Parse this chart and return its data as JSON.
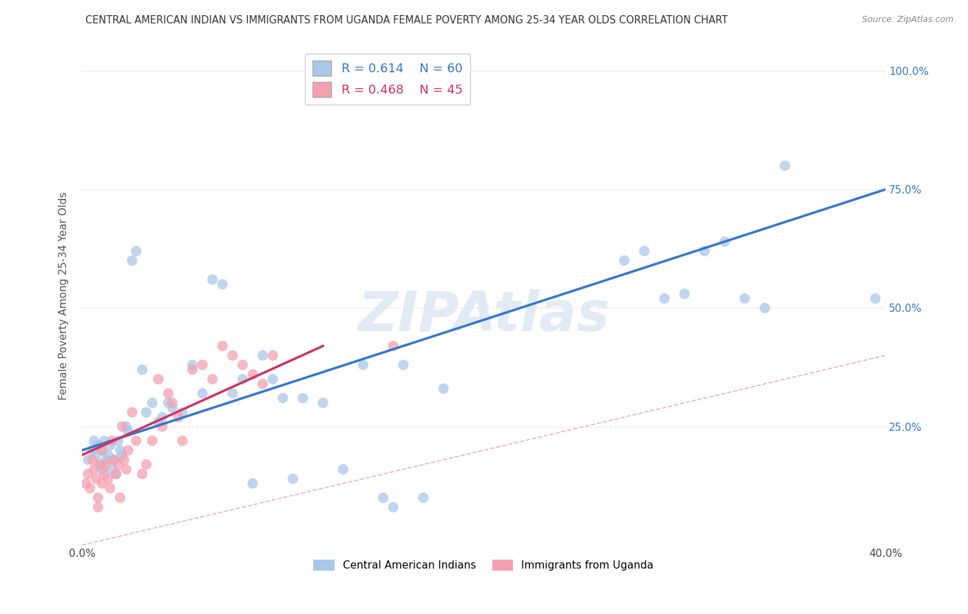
{
  "title": "CENTRAL AMERICAN INDIAN VS IMMIGRANTS FROM UGANDA FEMALE POVERTY AMONG 25-34 YEAR OLDS CORRELATION CHART",
  "source": "Source: ZipAtlas.com",
  "ylabel": "Female Poverty Among 25-34 Year Olds",
  "xlim": [
    0.0,
    0.4
  ],
  "ylim": [
    0.0,
    1.05
  ],
  "blue_R": 0.614,
  "blue_N": 60,
  "pink_R": 0.468,
  "pink_N": 45,
  "blue_color": "#a8c8e8",
  "pink_color": "#f4a0b0",
  "blue_line_color": "#3377cc",
  "pink_line_color": "#cc3366",
  "diagonal_line_color": "#e8a8b8",
  "watermark": "ZIPAtlas",
  "blue_scatter_x": [
    0.003,
    0.005,
    0.006,
    0.007,
    0.008,
    0.009,
    0.01,
    0.01,
    0.011,
    0.012,
    0.013,
    0.014,
    0.015,
    0.016,
    0.017,
    0.018,
    0.019,
    0.02,
    0.022,
    0.023,
    0.025,
    0.027,
    0.03,
    0.032,
    0.035,
    0.038,
    0.04,
    0.043,
    0.045,
    0.05,
    0.055,
    0.06,
    0.065,
    0.07,
    0.075,
    0.08,
    0.085,
    0.09,
    0.095,
    0.1,
    0.105,
    0.11,
    0.12,
    0.13,
    0.14,
    0.15,
    0.155,
    0.16,
    0.17,
    0.18,
    0.27,
    0.28,
    0.29,
    0.3,
    0.31,
    0.32,
    0.33,
    0.34,
    0.35,
    0.395
  ],
  "blue_scatter_y": [
    0.18,
    0.2,
    0.22,
    0.19,
    0.21,
    0.17,
    0.2,
    0.16,
    0.22,
    0.18,
    0.19,
    0.21,
    0.16,
    0.18,
    0.15,
    0.22,
    0.2,
    0.19,
    0.25,
    0.24,
    0.6,
    0.62,
    0.37,
    0.28,
    0.3,
    0.26,
    0.27,
    0.3,
    0.29,
    0.28,
    0.38,
    0.32,
    0.56,
    0.55,
    0.32,
    0.35,
    0.13,
    0.4,
    0.35,
    0.31,
    0.14,
    0.31,
    0.3,
    0.16,
    0.38,
    0.1,
    0.08,
    0.38,
    0.1,
    0.33,
    0.6,
    0.62,
    0.52,
    0.53,
    0.62,
    0.64,
    0.52,
    0.5,
    0.8,
    0.52
  ],
  "pink_scatter_x": [
    0.002,
    0.003,
    0.004,
    0.005,
    0.006,
    0.007,
    0.008,
    0.008,
    0.009,
    0.01,
    0.01,
    0.011,
    0.012,
    0.013,
    0.014,
    0.015,
    0.016,
    0.017,
    0.018,
    0.019,
    0.02,
    0.021,
    0.022,
    0.023,
    0.025,
    0.027,
    0.03,
    0.032,
    0.035,
    0.038,
    0.04,
    0.043,
    0.045,
    0.048,
    0.05,
    0.055,
    0.06,
    0.065,
    0.07,
    0.075,
    0.08,
    0.085,
    0.09,
    0.095,
    0.155
  ],
  "pink_scatter_y": [
    0.13,
    0.15,
    0.12,
    0.18,
    0.16,
    0.14,
    0.08,
    0.1,
    0.17,
    0.13,
    0.2,
    0.15,
    0.17,
    0.14,
    0.12,
    0.22,
    0.18,
    0.15,
    0.17,
    0.1,
    0.25,
    0.18,
    0.16,
    0.2,
    0.28,
    0.22,
    0.15,
    0.17,
    0.22,
    0.35,
    0.25,
    0.32,
    0.3,
    0.27,
    0.22,
    0.37,
    0.38,
    0.35,
    0.42,
    0.4,
    0.38,
    0.36,
    0.34,
    0.4,
    0.42
  ]
}
